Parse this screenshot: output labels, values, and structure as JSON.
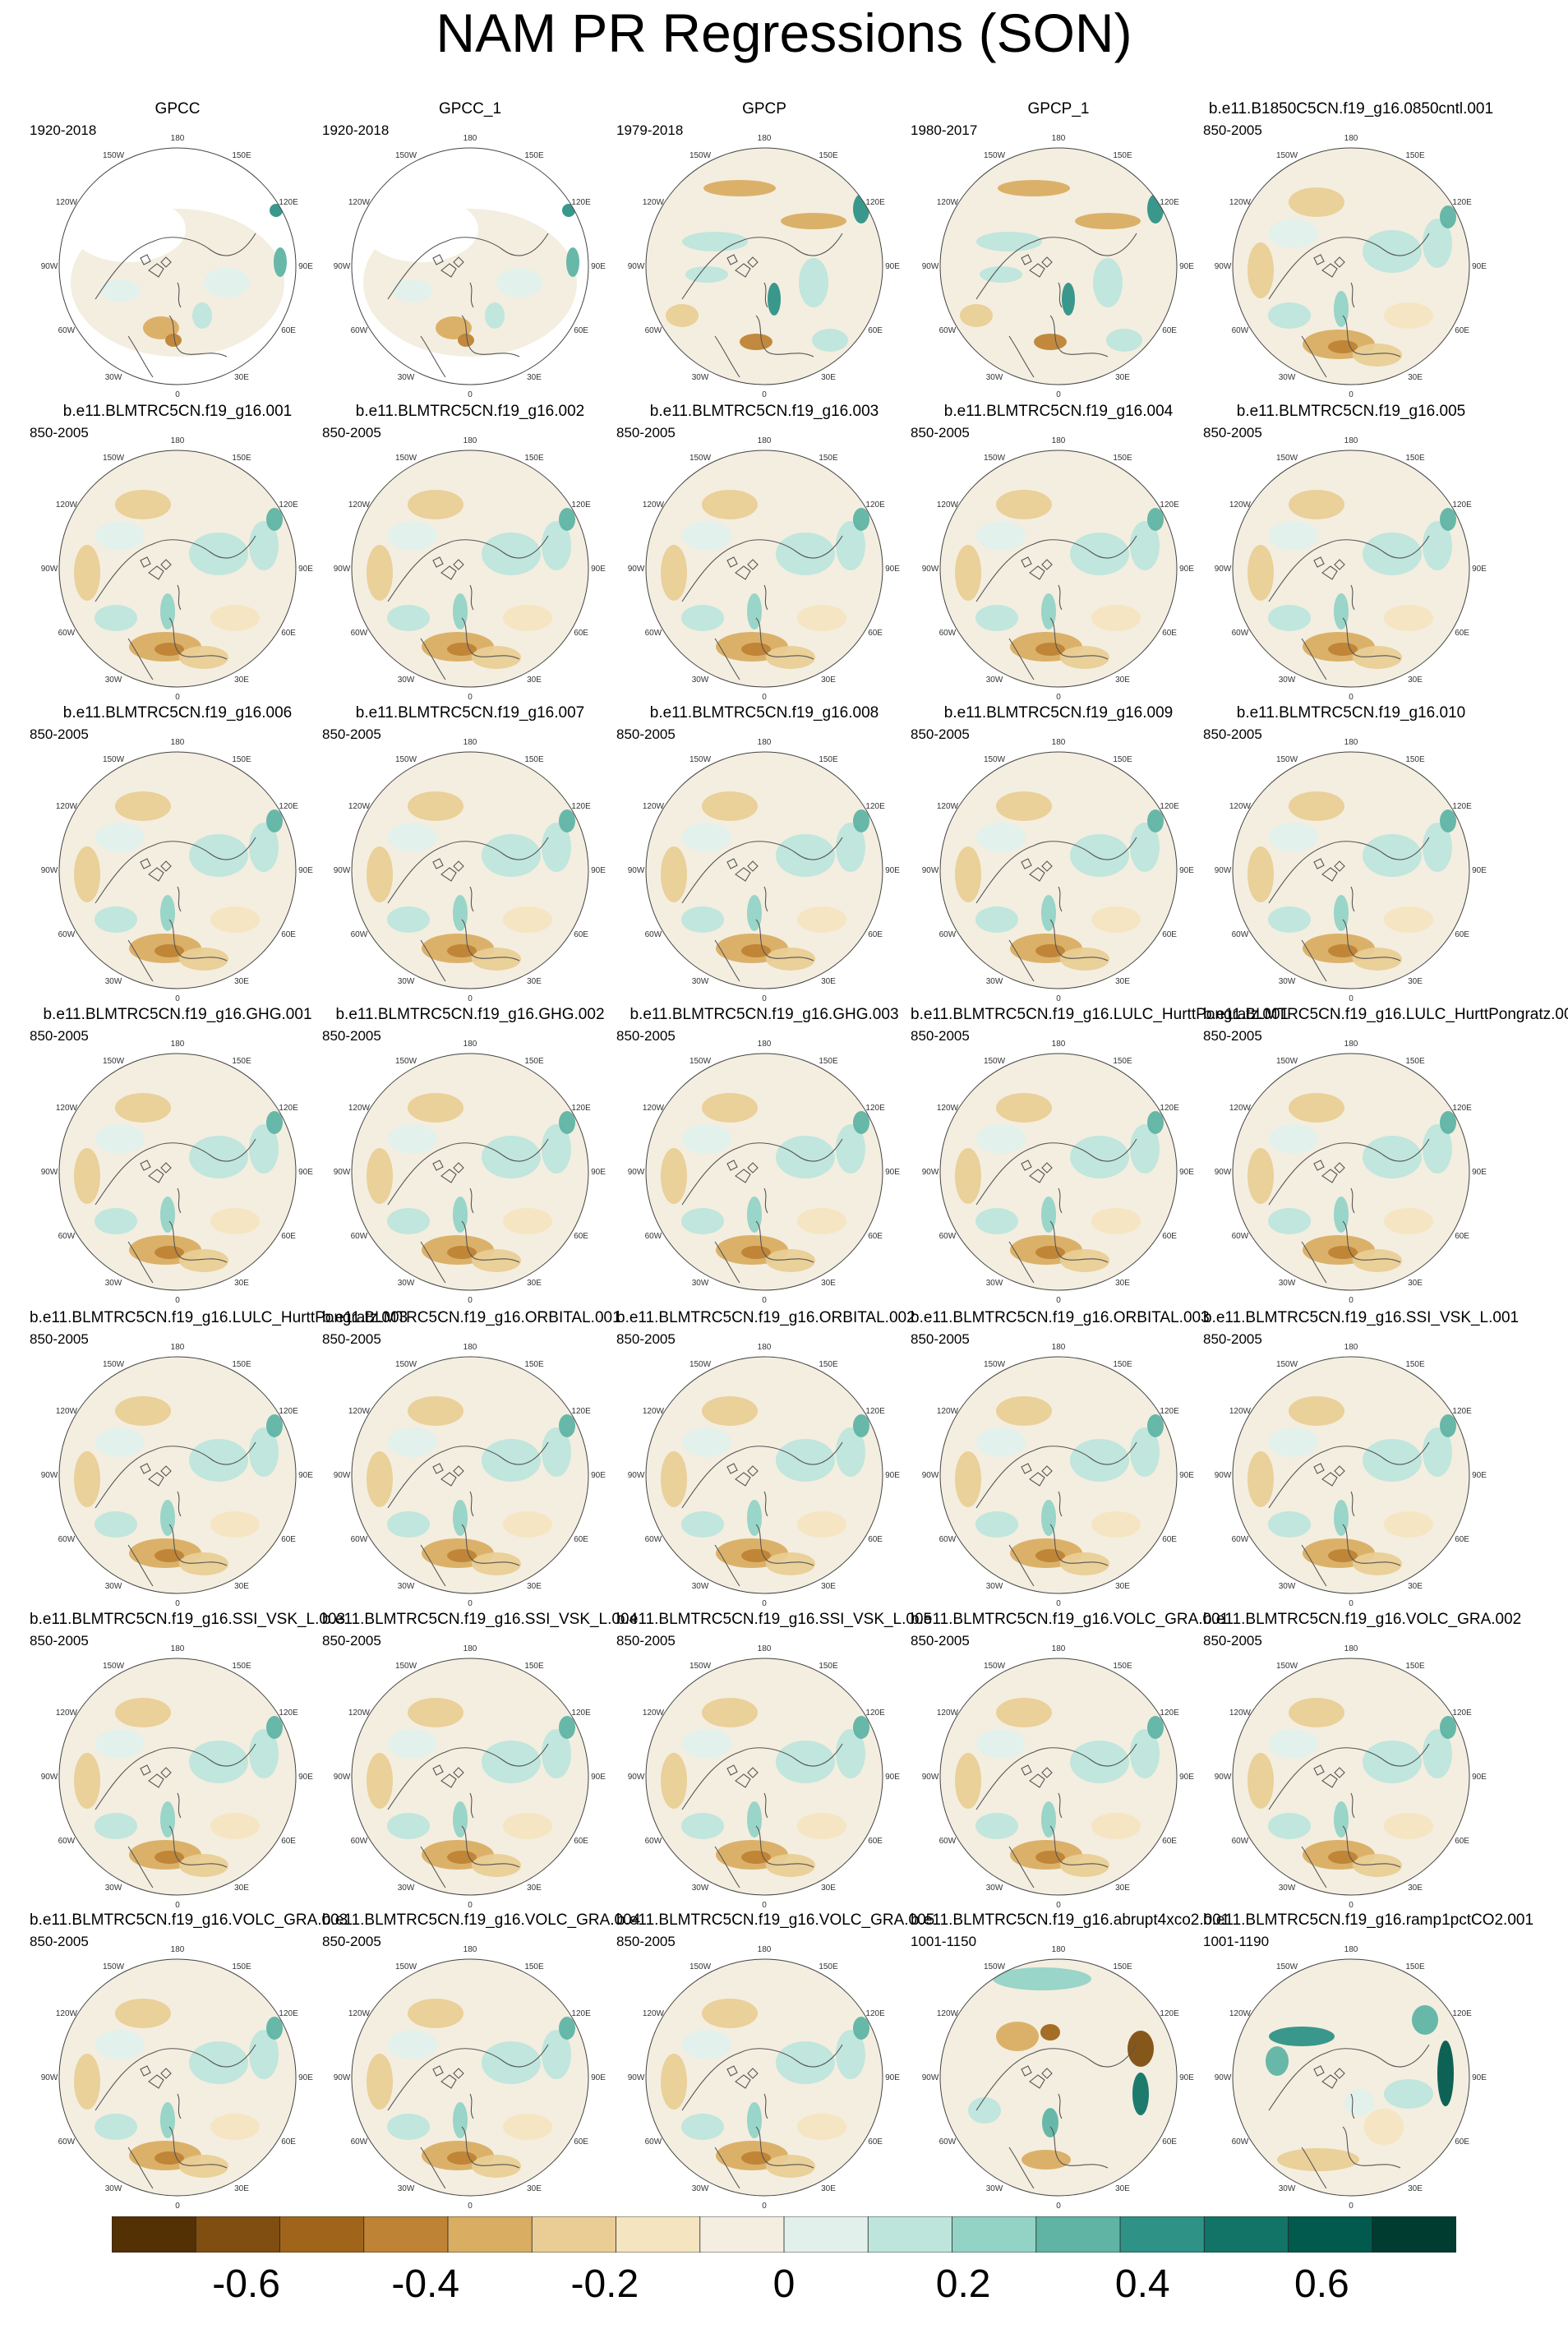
{
  "chart_data": {
    "type": "heatmap",
    "title": "NAM PR Regressions (SON)",
    "projection": "north polar stereographic",
    "layout": {
      "rows": 7,
      "cols": 5
    },
    "longitude_labels": [
      "180",
      "150E",
      "120E",
      "90E",
      "60E",
      "30E",
      "0",
      "30W",
      "60W",
      "90W",
      "120W",
      "150W"
    ],
    "panels": [
      {
        "name": "GPCC",
        "period": "1920-2018",
        "pattern": "obs_gpcc"
      },
      {
        "name": "GPCC_1",
        "period": "1920-2018",
        "pattern": "obs_gpcc"
      },
      {
        "name": "GPCP",
        "period": "1979-2018",
        "pattern": "obs_gpcp"
      },
      {
        "name": "GPCP_1",
        "period": "1980-2017",
        "pattern": "obs_gpcp"
      },
      {
        "name": "b.e11.B1850C5CN.f19_g16.0850cntl.001",
        "period": "850-2005",
        "pattern": "model"
      },
      {
        "name": "b.e11.BLMTRC5CN.f19_g16.001",
        "period": "850-2005",
        "pattern": "model"
      },
      {
        "name": "b.e11.BLMTRC5CN.f19_g16.002",
        "period": "850-2005",
        "pattern": "model"
      },
      {
        "name": "b.e11.BLMTRC5CN.f19_g16.003",
        "period": "850-2005",
        "pattern": "model"
      },
      {
        "name": "b.e11.BLMTRC5CN.f19_g16.004",
        "period": "850-2005",
        "pattern": "model"
      },
      {
        "name": "b.e11.BLMTRC5CN.f19_g16.005",
        "period": "850-2005",
        "pattern": "model"
      },
      {
        "name": "b.e11.BLMTRC5CN.f19_g16.006",
        "period": "850-2005",
        "pattern": "model"
      },
      {
        "name": "b.e11.BLMTRC5CN.f19_g16.007",
        "period": "850-2005",
        "pattern": "model"
      },
      {
        "name": "b.e11.BLMTRC5CN.f19_g16.008",
        "period": "850-2005",
        "pattern": "model"
      },
      {
        "name": "b.e11.BLMTRC5CN.f19_g16.009",
        "period": "850-2005",
        "pattern": "model"
      },
      {
        "name": "b.e11.BLMTRC5CN.f19_g16.010",
        "period": "850-2005",
        "pattern": "model"
      },
      {
        "name": "b.e11.BLMTRC5CN.f19_g16.GHG.001",
        "period": "850-2005",
        "pattern": "model"
      },
      {
        "name": "b.e11.BLMTRC5CN.f19_g16.GHG.002",
        "period": "850-2005",
        "pattern": "model"
      },
      {
        "name": "b.e11.BLMTRC5CN.f19_g16.GHG.003",
        "period": "850-2005",
        "pattern": "model"
      },
      {
        "name": "b.e11.BLMTRC5CN.f19_g16.LULC_HurttPongratz.001",
        "period": "850-2005",
        "pattern": "model"
      },
      {
        "name": "b.e11.BLMTRC5CN.f19_g16.LULC_HurttPongratz.002",
        "period": "850-2005",
        "pattern": "model"
      },
      {
        "name": "b.e11.BLMTRC5CN.f19_g16.LULC_HurttPongratz.003",
        "period": "850-2005",
        "pattern": "model"
      },
      {
        "name": "b.e11.BLMTRC5CN.f19_g16.ORBITAL.001",
        "period": "850-2005",
        "pattern": "model"
      },
      {
        "name": "b.e11.BLMTRC5CN.f19_g16.ORBITAL.002",
        "period": "850-2005",
        "pattern": "model"
      },
      {
        "name": "b.e11.BLMTRC5CN.f19_g16.ORBITAL.003",
        "period": "850-2005",
        "pattern": "model"
      },
      {
        "name": "b.e11.BLMTRC5CN.f19_g16.SSI_VSK_L.001",
        "period": "850-2005",
        "pattern": "model"
      },
      {
        "name": "b.e11.BLMTRC5CN.f19_g16.SSI_VSK_L.003",
        "period": "850-2005",
        "pattern": "model"
      },
      {
        "name": "b.e11.BLMTRC5CN.f19_g16.SSI_VSK_L.004",
        "period": "850-2005",
        "pattern": "model"
      },
      {
        "name": "b.e11.BLMTRC5CN.f19_g16.SSI_VSK_L.005",
        "period": "850-2005",
        "pattern": "model"
      },
      {
        "name": "b.e11.BLMTRC5CN.f19_g16.VOLC_GRA.001",
        "period": "850-2005",
        "pattern": "model"
      },
      {
        "name": "b.e11.BLMTRC5CN.f19_g16.VOLC_GRA.002",
        "period": "850-2005",
        "pattern": "model"
      },
      {
        "name": "b.e11.BLMTRC5CN.f19_g16.VOLC_GRA.003",
        "period": "850-2005",
        "pattern": "model"
      },
      {
        "name": "b.e11.BLMTRC5CN.f19_g16.VOLC_GRA.004",
        "period": "850-2005",
        "pattern": "model"
      },
      {
        "name": "b.e11.BLMTRC5CN.f19_g16.VOLC_GRA.005",
        "period": "850-2005",
        "pattern": "model"
      },
      {
        "name": "b.e11.BLMTRC5CN.f19_g16.abrupt4xco2.001",
        "period": "1001-1150",
        "pattern": "abrupt"
      },
      {
        "name": "b.e11.BLMTRC5CN.f19_g16.ramp1pctCO2.001",
        "period": "1001-1190",
        "pattern": "ramp"
      }
    ],
    "colorbar": {
      "levels": [
        -0.65,
        -0.55,
        -0.45,
        -0.35,
        -0.25,
        -0.15,
        -0.05,
        0.05,
        0.15,
        0.25,
        0.35,
        0.45,
        0.55,
        0.65
      ],
      "colors": [
        "#543005",
        "#7f4e10",
        "#a0651a",
        "#bf8335",
        "#d9ad62",
        "#e9cd95",
        "#f4e4c0",
        "#f4eee0",
        "#e2f0ec",
        "#bde5dc",
        "#93d3c6",
        "#5fb4a4",
        "#2e9286",
        "#117467",
        "#015a4d",
        "#003c30"
      ],
      "tick_values": [
        -0.6,
        -0.4,
        -0.2,
        0,
        0.2,
        0.4,
        0.6
      ],
      "tick_labels": [
        "-0.6",
        "-0.4",
        "-0.2",
        "0",
        "0.2",
        "0.4",
        "0.6"
      ]
    }
  }
}
